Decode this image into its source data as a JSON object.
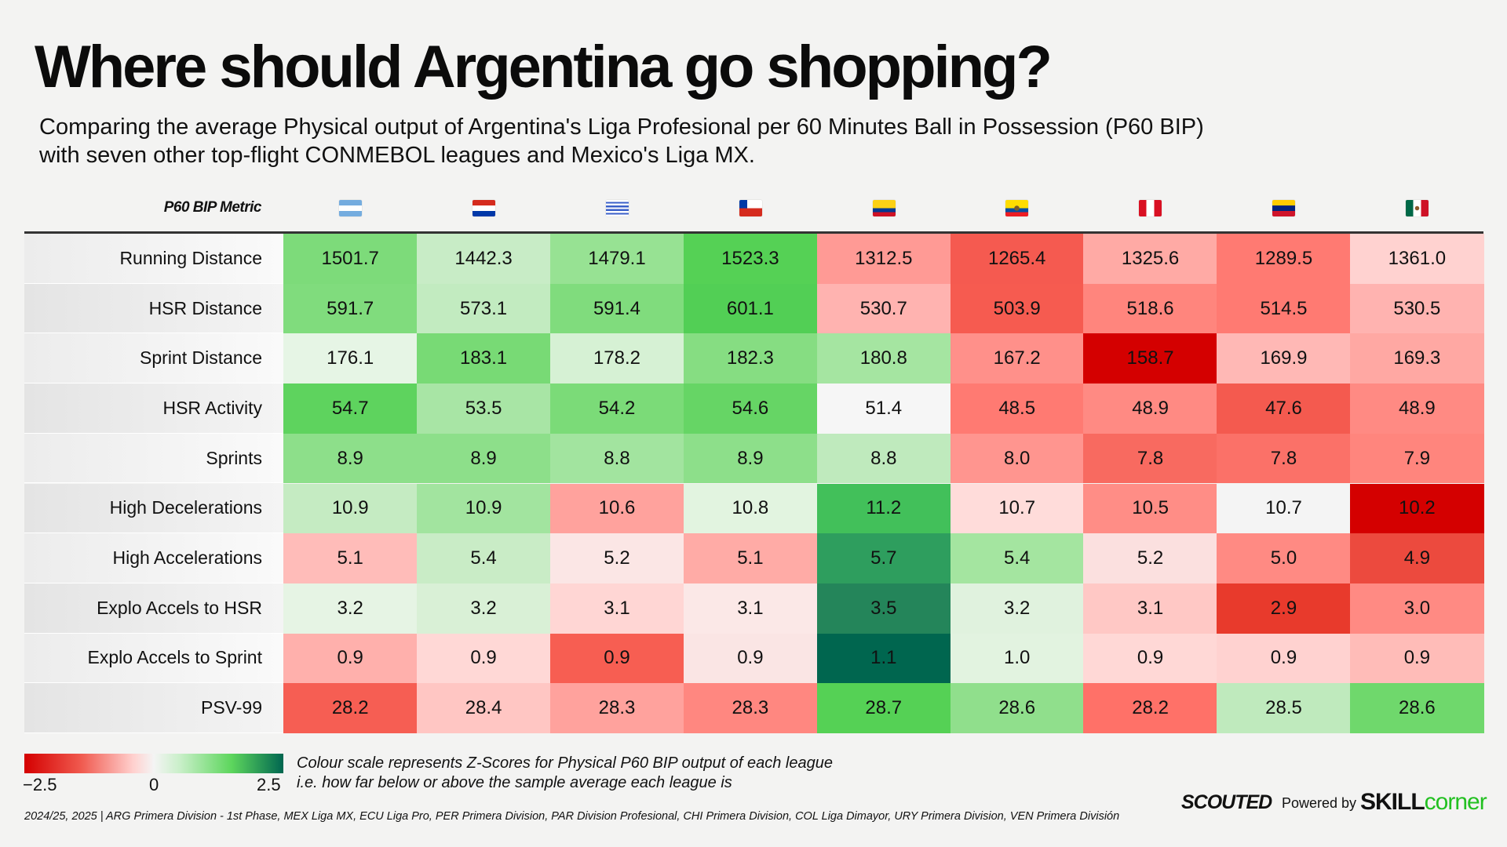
{
  "title": "Where should Argentina go shopping?",
  "subtitle_line1": "Comparing the average Physical output of Argentina's Liga Profesional per 60 Minutes Ball in Possession (P60 BIP)",
  "subtitle_line2": "with seven other top-flight CONMEBOL leagues and Mexico's Liga MX.",
  "chart_data": {
    "type": "table",
    "row_header": "P60 BIP Metric",
    "columns": [
      {
        "country": "Argentina",
        "flag": "argentina-flag"
      },
      {
        "country": "Paraguay",
        "flag": "paraguay-flag"
      },
      {
        "country": "Uruguay",
        "flag": "uruguay-flag"
      },
      {
        "country": "Chile",
        "flag": "chile-flag"
      },
      {
        "country": "Colombia",
        "flag": "colombia-flag"
      },
      {
        "country": "Ecuador",
        "flag": "ecuador-flag"
      },
      {
        "country": "Peru",
        "flag": "peru-flag"
      },
      {
        "country": "Venezuela",
        "flag": "venezuela-flag"
      },
      {
        "country": "Mexico",
        "flag": "mexico-flag"
      }
    ],
    "rows": [
      {
        "metric": "Running Distance",
        "values": [
          "1501.7",
          "1442.3",
          "1479.1",
          "1523.3",
          "1312.5",
          "1265.4",
          "1325.6",
          "1289.5",
          "1361.0"
        ],
        "colors": [
          "#7ddb7a",
          "#c8ecc6",
          "#97e293",
          "#55d155",
          "#ff9a95",
          "#f55a50",
          "#ffaaa5",
          "#ff7a72",
          "#ffd2d0"
        ]
      },
      {
        "metric": "HSR Distance",
        "values": [
          "591.7",
          "573.1",
          "591.4",
          "601.1",
          "530.7",
          "503.9",
          "518.6",
          "514.5",
          "530.5"
        ],
        "colors": [
          "#80dc7d",
          "#c2ebc0",
          "#80dc7d",
          "#52cf55",
          "#ffb3b0",
          "#f65b50",
          "#ff857d",
          "#ff7a72",
          "#ffb3b0"
        ]
      },
      {
        "metric": "Sprint Distance",
        "values": [
          "176.1",
          "183.1",
          "178.2",
          "182.3",
          "180.8",
          "167.2",
          "158.7",
          "169.9",
          "169.3"
        ],
        "colors": [
          "#e6f5e5",
          "#78da75",
          "#d6f1d4",
          "#86dd82",
          "#a5e5a1",
          "#ff908a",
          "#d40000",
          "#ffb8b5",
          "#ffa8a3"
        ]
      },
      {
        "metric": "HSR Activity",
        "values": [
          "54.7",
          "53.5",
          "54.2",
          "54.6",
          "51.4",
          "48.5",
          "48.9",
          "47.6",
          "48.9"
        ],
        "colors": [
          "#5ed35e",
          "#a8e5a5",
          "#7bdb78",
          "#66d565",
          "#f6f6f6",
          "#ff7a72",
          "#ff8a83",
          "#f45a4f",
          "#ff8a83"
        ]
      },
      {
        "metric": "Sprints",
        "values": [
          "8.9",
          "8.9",
          "8.8",
          "8.9",
          "8.8",
          "8.0",
          "7.8",
          "7.8",
          "7.9"
        ],
        "colors": [
          "#8ddf8a",
          "#8ddf8a",
          "#a2e49f",
          "#8ddf8a",
          "#bfeabd",
          "#ff958f",
          "#f86a60",
          "#fb7168",
          "#ff857d"
        ]
      },
      {
        "metric": "High Decelerations",
        "values": [
          "10.9",
          "10.9",
          "10.6",
          "10.8",
          "11.2",
          "10.7",
          "10.5",
          "10.7",
          "10.2"
        ],
        "colors": [
          "#c5ebc2",
          "#a2e49f",
          "#ffa29d",
          "#e2f4e0",
          "#42c05a",
          "#ffdcda",
          "#ff8d86",
          "#f4f4f4",
          "#d40000"
        ]
      },
      {
        "metric": "High Accelerations",
        "values": [
          "5.1",
          "5.4",
          "5.2",
          "5.1",
          "5.7",
          "5.4",
          "5.2",
          "5.0",
          "4.9"
        ],
        "colors": [
          "#ffbcb9",
          "#c9ecc6",
          "#fbe6e5",
          "#ffaba6",
          "#2e9e5e",
          "#a4e5a0",
          "#fbe0df",
          "#ff8a83",
          "#ec4a3e"
        ]
      },
      {
        "metric": "Explo Accels to HSR",
        "values": [
          "3.2",
          "3.2",
          "3.1",
          "3.1",
          "3.5",
          "3.2",
          "3.1",
          "2.9",
          "3.0"
        ],
        "colors": [
          "#e6f4e4",
          "#d9f0d6",
          "#ffd6d4",
          "#fbe8e7",
          "#24855a",
          "#e0f2de",
          "#ffc8c5",
          "#e83a2c",
          "#ff8a83"
        ]
      },
      {
        "metric": "Explo Accels to Sprint",
        "values": [
          "0.9",
          "0.9",
          "0.9",
          "0.9",
          "1.1",
          "1.0",
          "0.9",
          "0.9",
          "0.9"
        ],
        "colors": [
          "#ffb0ac",
          "#ffd8d6",
          "#f75e52",
          "#fae5e4",
          "#00664f",
          "#e2f3e0",
          "#ffd8d6",
          "#ffd2d0",
          "#ffbcb8"
        ]
      },
      {
        "metric": "PSV-99",
        "values": [
          "28.2",
          "28.4",
          "28.3",
          "28.3",
          "28.7",
          "28.6",
          "28.2",
          "28.5",
          "28.6"
        ],
        "colors": [
          "#f65e53",
          "#ffc6c3",
          "#ffa29d",
          "#ff8780",
          "#55d155",
          "#90df8c",
          "#ff7168",
          "#bfeabd",
          "#6fd86c"
        ]
      }
    ],
    "color_scale": {
      "min": -2.5,
      "mid": 0,
      "max": 2.5,
      "min_label": "−2.5",
      "mid_label": "0",
      "max_label": "2.5",
      "colors": [
        "#d40000",
        "#f4f4f4",
        "#006650"
      ]
    }
  },
  "legend": {
    "note_line1": "Colour scale represents Z-Scores for Physical P60 BIP output of each league",
    "note_line2": "i.e. how far below or above the sample average each league is"
  },
  "footer": "2024/25, 2025 | ARG Primera Division - 1st Phase, MEX Liga MX, ECU Liga Pro, PER Primera Division, PAR Division Profesional, CHI Primera Division, COL Liga Dimayor, URY Primera Division, VEN Primera División",
  "branding": {
    "scouted": "SCOUTED",
    "powered_by": "Powered by",
    "skill": "SKILL",
    "corner": "corner"
  }
}
